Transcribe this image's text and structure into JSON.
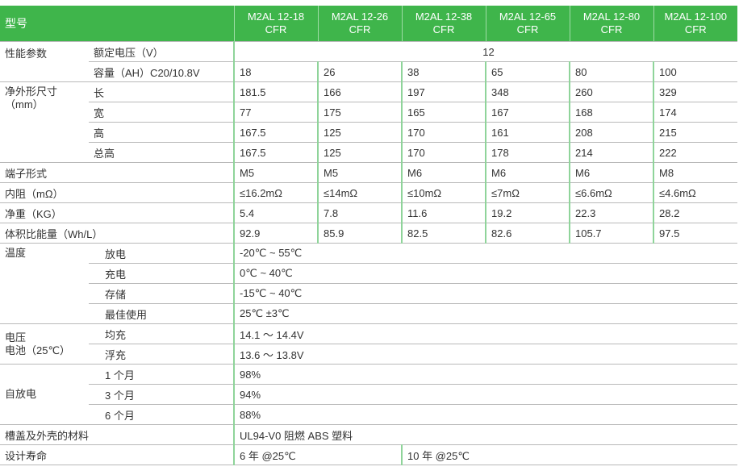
{
  "header": {
    "label": "型号",
    "models": [
      "M2AL 12-18\nCFR",
      "M2AL 12-26\nCFR",
      "M2AL 12-38\nCFR",
      "M2AL 12-65\nCFR",
      "M2AL 12-80\nCFR",
      "M2AL 12-100\nCFR"
    ]
  },
  "perf": {
    "group": "性能参数",
    "voltage_label": "额定电压（V）",
    "voltage": "12",
    "capacity_label": "容量（AH）C20/10.8V",
    "capacity": [
      "18",
      "26",
      "38",
      "65",
      "80",
      "100"
    ]
  },
  "dims": {
    "group": "净外形尺寸\n（mm）",
    "rows": [
      {
        "label": "长",
        "values": [
          "181.5",
          "166",
          "197",
          "348",
          "260",
          "329"
        ]
      },
      {
        "label": "宽",
        "values": [
          "77",
          "175",
          "165",
          "167",
          "168",
          "174"
        ]
      },
      {
        "label": "高",
        "values": [
          "167.5",
          "125",
          "170",
          "161",
          "208",
          "215"
        ]
      },
      {
        "label": "总高",
        "values": [
          "167.5",
          "125",
          "170",
          "178",
          "214",
          "222"
        ]
      }
    ]
  },
  "single_rows": [
    {
      "label": "端子形式",
      "values": [
        "M5",
        "M5",
        "M6",
        "M6",
        "M6",
        "M8"
      ]
    },
    {
      "label": "内阻（mΩ）",
      "values": [
        "≤16.2mΩ",
        "≤14mΩ",
        "≤10mΩ",
        "≤7mΩ",
        "≤6.6mΩ",
        "≤4.6mΩ"
      ]
    },
    {
      "label": "净重（KG）",
      "values": [
        "5.4",
        "7.8",
        "11.6",
        "19.2",
        "22.3",
        "28.2"
      ]
    },
    {
      "label": "体积比能量（Wh/L）",
      "values": [
        "92.9",
        "85.9",
        "82.5",
        "82.6",
        "105.7",
        "97.5"
      ]
    }
  ],
  "temperature": {
    "group": "温度",
    "rows": [
      {
        "label": "放电",
        "value": "-20℃ ~ 55℃"
      },
      {
        "label": "充电",
        "value": "0℃ ~ 40℃"
      },
      {
        "label": "存储",
        "value": "-15℃ ~ 40℃"
      },
      {
        "label": "最佳使用",
        "value": "25℃ ±3℃"
      }
    ]
  },
  "charge_voltage": {
    "group": "电压\n电池（25℃）",
    "rows": [
      {
        "label": "均充",
        "value": "14.1 ～ 14.4V"
      },
      {
        "label": "浮充",
        "value": "13.6 ～ 13.8V"
      }
    ]
  },
  "self_discharge": {
    "group": "自放电",
    "rows": [
      {
        "label": "1 个月",
        "value": "98%"
      },
      {
        "label": "3 个月",
        "value": "94%"
      },
      {
        "label": "6 个月",
        "value": "88%"
      }
    ]
  },
  "material": {
    "label": "槽盖及外壳的材料",
    "value": "UL94-V0 阻燃 ABS 塑料"
  },
  "life": {
    "label": "设计寿命",
    "value_a": "6 年 @25℃",
    "value_b": "10 年 @25℃"
  },
  "colors": {
    "header_bg": "#3fb54b",
    "divider": "#8fd49a"
  }
}
